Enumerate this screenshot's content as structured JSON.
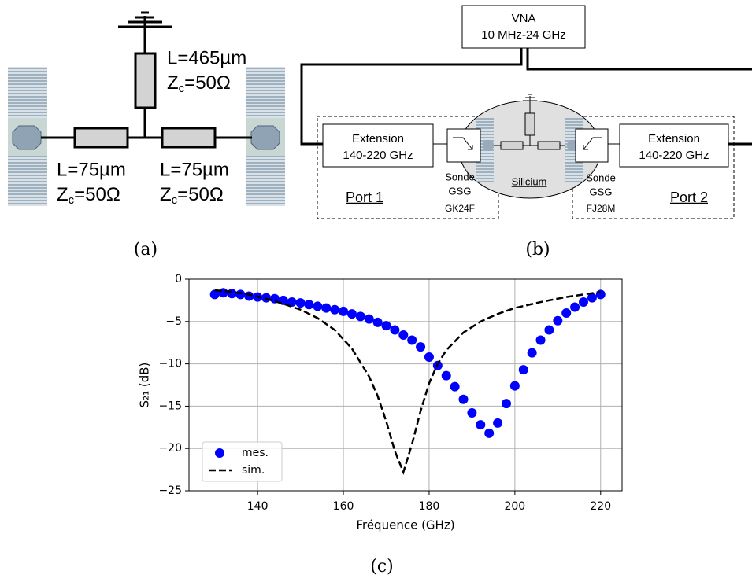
{
  "diagram_a": {
    "stub": {
      "length": "L=465µm",
      "impedance": {
        "symbol": "Z",
        "sub": "c",
        "value": "=50Ω"
      }
    },
    "left": {
      "length": "L=75µm",
      "impedance": {
        "symbol": "Z",
        "sub": "c",
        "value": "=50Ω"
      }
    },
    "right": {
      "length": "L=75µm",
      "impedance": {
        "symbol": "Z",
        "sub": "c",
        "value": "=50Ω"
      }
    },
    "caption": "(a)"
  },
  "diagram_b": {
    "vna": {
      "name": "VNA",
      "range": "10 MHz-24 GHz"
    },
    "port1": {
      "label": "Port 1",
      "extension": "Extension",
      "band": "140-220 GHz",
      "probe": "Sonde",
      "probe_type": "GSG",
      "probe_ref": "GK24F"
    },
    "port2": {
      "label": "Port 2",
      "extension": "Extension",
      "band": "140-220 GHz",
      "probe": "Sonde",
      "probe_type": "GSG",
      "probe_ref": "FJ28M"
    },
    "substrate": "Silicium",
    "caption": "(b)"
  },
  "chart_data": {
    "type": "line",
    "caption": "(c)",
    "xlabel": "Fréquence (GHz)",
    "ylabel": "S₂₁ (dB)",
    "xlim": [
      124,
      225
    ],
    "ylim": [
      -25,
      0
    ],
    "xticks": [
      140,
      160,
      180,
      200,
      220
    ],
    "yticks": [
      0,
      {
        "value": -5,
        "label": "−5"
      },
      {
        "value": -10,
        "label": "−10"
      },
      {
        "value": -15,
        "label": "−15"
      },
      {
        "value": -20,
        "label": "−20"
      },
      {
        "value": -25,
        "label": "−25"
      }
    ],
    "grid": true,
    "legend": "lower left",
    "series": [
      {
        "name": "mes.",
        "color": "#0000ff",
        "mode": "markers",
        "x": [
          130,
          132,
          134,
          136,
          138,
          140,
          142,
          144,
          146,
          148,
          150,
          152,
          154,
          156,
          158,
          160,
          162,
          164,
          166,
          168,
          170,
          172,
          174,
          176,
          178,
          180,
          182,
          184,
          186,
          188,
          190,
          192,
          194,
          196,
          198,
          200,
          202,
          204,
          206,
          208,
          210,
          212,
          214,
          216,
          218,
          220
        ],
        "values": [
          -1.8,
          -1.6,
          -1.7,
          -1.8,
          -2.0,
          -2.1,
          -2.2,
          -2.3,
          -2.5,
          -2.7,
          -2.8,
          -3.0,
          -3.2,
          -3.4,
          -3.6,
          -3.8,
          -4.1,
          -4.4,
          -4.7,
          -5.1,
          -5.5,
          -6.0,
          -6.6,
          -7.2,
          -8.0,
          -9.2,
          -10.2,
          -11.4,
          -12.7,
          -14.2,
          -15.8,
          -17.2,
          -18.2,
          -17.0,
          -14.7,
          -12.6,
          -10.7,
          -8.7,
          -7.2,
          -6.0,
          -4.9,
          -4.0,
          -3.3,
          -2.7,
          -2.2,
          -1.8
        ]
      },
      {
        "name": "sim.",
        "color": "#000000",
        "mode": "dashed",
        "x": [
          130,
          134,
          138,
          142,
          146,
          150,
          154,
          158,
          162,
          166,
          168,
          170,
          172,
          174,
          176,
          178,
          180,
          182,
          184,
          188,
          192,
          196,
          200,
          206,
          212,
          220
        ],
        "values": [
          -1.3,
          -1.5,
          -1.8,
          -2.3,
          -2.9,
          -3.6,
          -4.6,
          -6.0,
          -8.2,
          -11.5,
          -13.8,
          -16.8,
          -20.3,
          -22.8,
          -19.5,
          -15.6,
          -12.3,
          -10.0,
          -8.4,
          -6.3,
          -5.0,
          -4.1,
          -3.4,
          -2.7,
          -2.1,
          -1.5
        ]
      }
    ]
  }
}
